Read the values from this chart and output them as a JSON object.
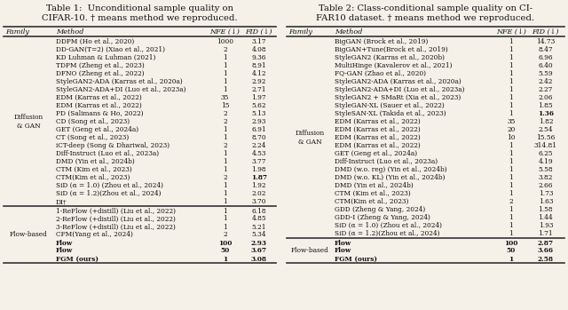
{
  "table1_title": "Table 1:  Unconditional sample quality on\nCIFAR-10. † means method we reproduced.",
  "table2_title": "Table 2: Class-conditional sample quality on CI-\nFAR10 dataset. † means method we reproduced.",
  "table1_headers": [
    "Family",
    "Method",
    "NFE (↓)",
    "FID (↓)"
  ],
  "table2_headers": [
    "Family",
    "Method",
    "NFE (↓)",
    "FID (↓)"
  ],
  "table1_sections": [
    {
      "family": "Diffusion\n& GAN",
      "rows": [
        [
          "DDPM (Ho et al., 2020)",
          "1000",
          "3.17",
          false
        ],
        [
          "DD-GAN(T=2) (Xiao et al., 2021)",
          "2",
          "4.08",
          false
        ],
        [
          "KD Luhman & Luhman (2021)",
          "1",
          "9.36",
          false
        ],
        [
          "TDPM (Zheng et al., 2023)",
          "1",
          "8.91",
          false
        ],
        [
          "DFNO (Zheng et al., 2022)",
          "1",
          "4.12",
          false
        ],
        [
          "StyleGAN2-ADA (Karras et al., 2020a)",
          "1",
          "2.92",
          false
        ],
        [
          "StyleGAN2-ADA+DI (Luo et al., 2023a)",
          "1",
          "2.71",
          false
        ],
        [
          "EDM (Karras et al., 2022)",
          "35",
          "1.97",
          false
        ],
        [
          "EDM (Karras et al., 2022)",
          "15",
          "5.62",
          false
        ],
        [
          "PD (Salimans & Ho, 2022)",
          "2",
          "5.13",
          false
        ],
        [
          "CD (Song et al., 2023)",
          "2",
          "2.93",
          false
        ],
        [
          "GET (Geng et al., 2024a)",
          "1",
          "6.91",
          false
        ],
        [
          "CT (Song et al., 2023)",
          "1",
          "8.70",
          false
        ],
        [
          "iCT-deep (Song & Dhariwal, 2023)",
          "2",
          "2.24",
          false
        ],
        [
          "Diff-Instruct (Luo et al., 2023a)",
          "1",
          "4.53",
          false
        ],
        [
          "DMD (Yin et al., 2024b)",
          "1",
          "3.77",
          false
        ],
        [
          "CTM (Kim et al., 2023)",
          "1",
          "1.98",
          false
        ],
        [
          "CTM(Kim et al., 2023)",
          "2",
          "1.87",
          true
        ],
        [
          "SiD (α = 1.0) (Zhou et al., 2024)",
          "1",
          "1.92",
          false
        ],
        [
          "SiD (α = 1.2)(Zhou et al., 2024)",
          "1",
          "2.02",
          false
        ],
        [
          "DI†",
          "1",
          "3.70",
          false
        ]
      ]
    },
    {
      "family": "Flow-based",
      "rows": [
        [
          "1-ReFlow (+distill) (Liu et al., 2022)",
          "1",
          "6.18",
          false
        ],
        [
          "2-ReFlow (+distill) (Liu et al., 2022)",
          "1",
          "4.85",
          false
        ],
        [
          "3-ReFlow (+distill) (Liu et al., 2022)",
          "1",
          "5.21",
          false
        ],
        [
          "CFM(Yang et al., 2024)",
          "2",
          "5.34",
          false
        ],
        [
          "Flow",
          "100",
          "2.93",
          true
        ],
        [
          "Flow",
          "50",
          "3.67",
          false
        ],
        [
          "FGM (ours)",
          "1",
          "3.08",
          false
        ]
      ]
    }
  ],
  "table2_sections": [
    {
      "family": "Diffusion\n& GAN",
      "rows": [
        [
          "BigGAN (Brock et al., 2019)",
          "1",
          "14.73",
          false
        ],
        [
          "BigGAN+Tune(Brock et al., 2019)",
          "1",
          "8.47",
          false
        ],
        [
          "StyleGAN2 (Karras et al., 2020b)",
          "1",
          "6.96",
          false
        ],
        [
          "MultiHinge (Kavalerov et al., 2021)",
          "1",
          "6.40",
          false
        ],
        [
          "FQ-GAN (Zhao et al., 2020)",
          "1",
          "5.59",
          false
        ],
        [
          "StyleGAN2-ADA (Karras et al., 2020a)",
          "1",
          "2.42",
          false
        ],
        [
          "StyleGAN2-ADA+DI (Luo et al., 2023a)",
          "1",
          "2.27",
          false
        ],
        [
          "StyleGAN2 + SMaRt (Xia et al., 2023)",
          "1",
          "2.06",
          false
        ],
        [
          "StyleGAN-XL (Sauer et al., 2022)",
          "1",
          "1.85",
          false
        ],
        [
          "StyleSAN-XL (Takida et al., 2023)",
          "1",
          "1.36",
          true
        ],
        [
          "EDM (Karras et al., 2022)",
          "35",
          "1.82",
          false
        ],
        [
          "EDM (Karras et al., 2022)",
          "20",
          "2.54",
          false
        ],
        [
          "EDM (Karras et al., 2022)",
          "10",
          "15.56",
          false
        ],
        [
          "EDM (Karras et al., 2022)",
          "1",
          "314.81",
          false
        ],
        [
          "GET (Geng et al., 2024a)",
          "1",
          "6.25",
          false
        ],
        [
          "Diff-Instruct (Luo et al., 2023a)",
          "1",
          "4.19",
          false
        ],
        [
          "DMD (w.o. reg) (Yin et al., 2024b)",
          "1",
          "5.58",
          false
        ],
        [
          "DMD (w.o. KL) (Yin et al., 2024b)",
          "1",
          "3.82",
          false
        ],
        [
          "DMD (Yin et al., 2024b)",
          "1",
          "2.66",
          false
        ],
        [
          "CTM (Kim et al., 2023)",
          "1",
          "1.73",
          false
        ],
        [
          "CTM(Kim et al., 2023)",
          "2",
          "1.63",
          false
        ],
        [
          "GDD (Zheng & Yang, 2024)",
          "1",
          "1.58",
          false
        ],
        [
          "GDD-I (Zheng & Yang, 2024)",
          "1",
          "1.44",
          false
        ],
        [
          "SiD (α = 1.0) (Zhou et al., 2024)",
          "1",
          "1.93",
          false
        ],
        [
          "SiD (α = 1.2)(Zhou et al., 2024)",
          "1",
          "1.71",
          false
        ]
      ]
    },
    {
      "family": "Flow-based",
      "rows": [
        [
          "Flow",
          "100",
          "2.87",
          false
        ],
        [
          "Flow",
          "50",
          "3.66",
          false
        ],
        [
          "FGM (ours)",
          "1",
          "2.58",
          true
        ]
      ]
    }
  ],
  "bg_color": "#f5f0e8",
  "line_color": "#333333",
  "text_color": "#111111"
}
